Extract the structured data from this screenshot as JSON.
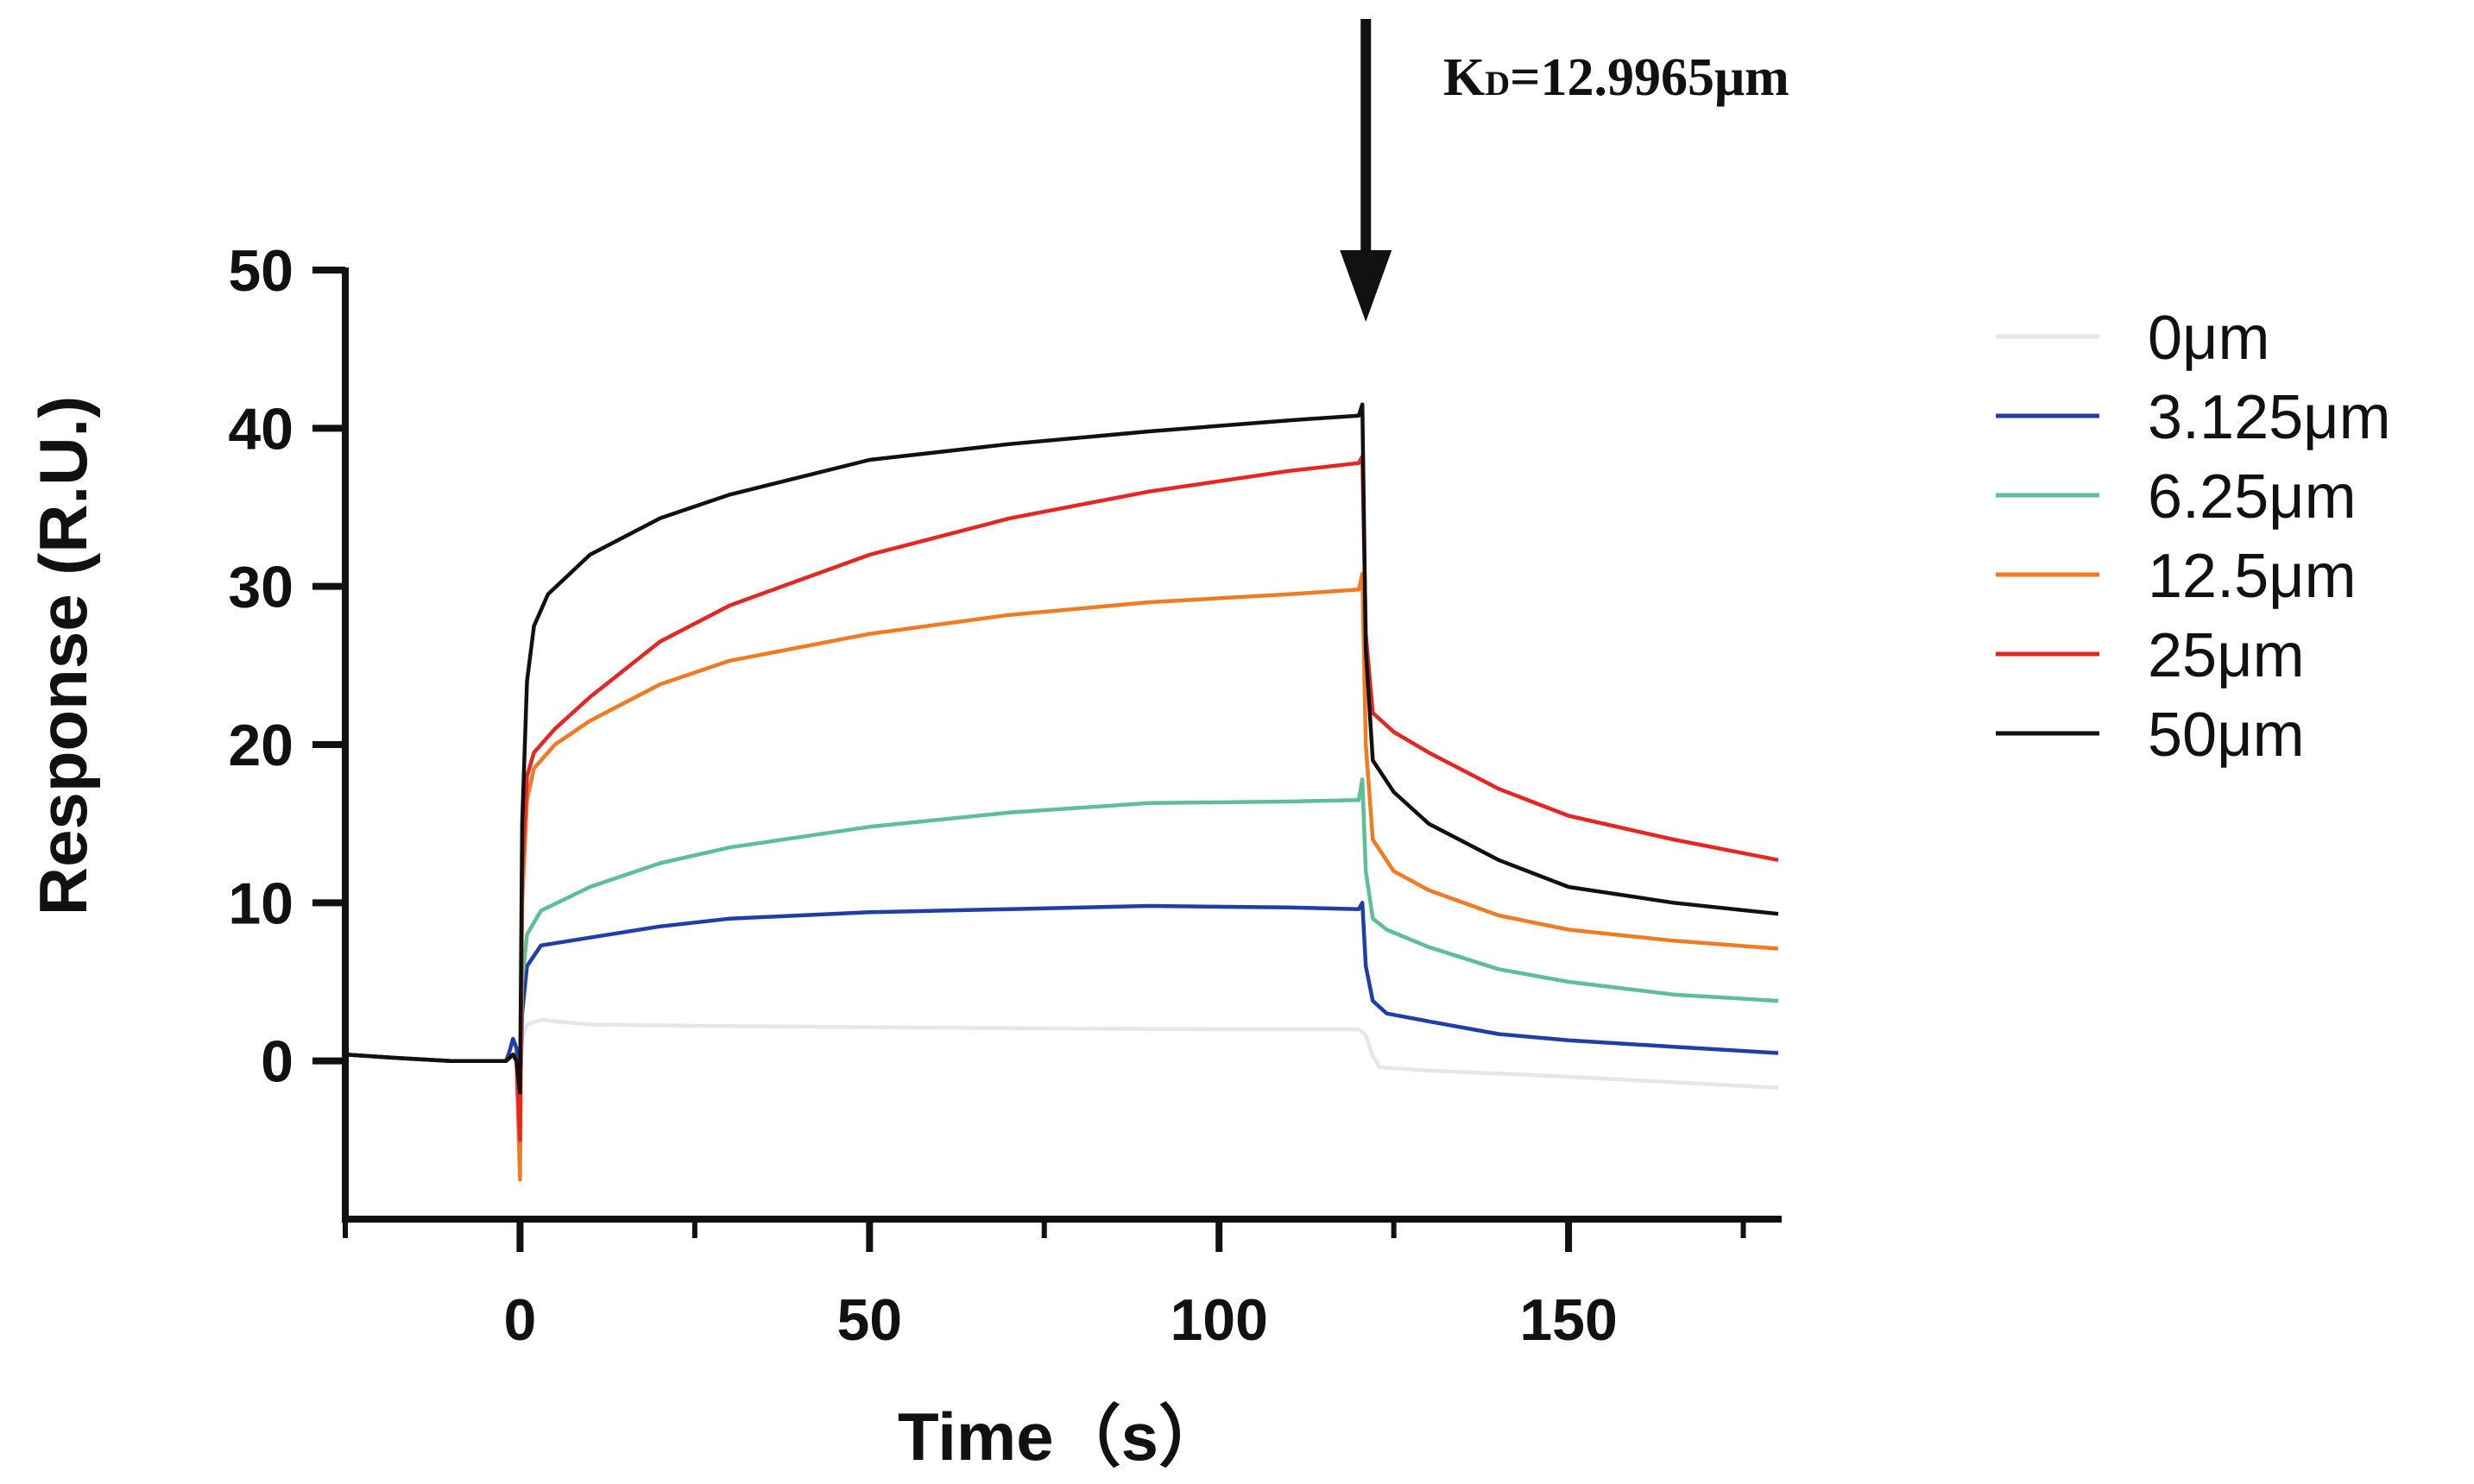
{
  "chart_data": {
    "type": "line",
    "title": "",
    "xlabel": "Time（s）",
    "ylabel": "Response (R.U.)",
    "xlim": [
      -25,
      180
    ],
    "ylim": [
      -10,
      50
    ],
    "x_ticks": [
      0,
      50,
      100,
      150
    ],
    "y_ticks": [
      0,
      10,
      20,
      30,
      40,
      50
    ],
    "x_tick_labels": [
      "0",
      "50",
      "100",
      "150"
    ],
    "y_tick_labels": [
      "0",
      "10",
      "20",
      "30",
      "40",
      "50"
    ],
    "legend_position": "right",
    "annotation": {
      "main": "K",
      "sub": "D",
      "rest": "=12.9965μm",
      "arrow_x": 121
    },
    "series": [
      {
        "name": "0μm",
        "color": "#e6e6e6",
        "points": [
          [
            -25,
            0.4
          ],
          [
            -18,
            0.2
          ],
          [
            -10,
            0.0
          ],
          [
            -2,
            0.0
          ],
          [
            -1,
            0.4
          ],
          [
            -0.5,
            -0.3
          ],
          [
            0,
            -1.0
          ],
          [
            0.3,
            1.5
          ],
          [
            1,
            2.3
          ],
          [
            3,
            2.6
          ],
          [
            10,
            2.3
          ],
          [
            30,
            2.2
          ],
          [
            60,
            2.1
          ],
          [
            100,
            2.0
          ],
          [
            120,
            2.0
          ],
          [
            121,
            1.6
          ],
          [
            122,
            0.3
          ],
          [
            123,
            -0.4
          ],
          [
            130,
            -0.6
          ],
          [
            150,
            -1.0
          ],
          [
            180,
            -1.7
          ]
        ]
      },
      {
        "name": "3.125μm",
        "color": "#1f3fa6",
        "points": [
          [
            -25,
            0.4
          ],
          [
            -18,
            0.2
          ],
          [
            -10,
            0.0
          ],
          [
            -2,
            0.0
          ],
          [
            -1.5,
            0.6
          ],
          [
            -1,
            1.4
          ],
          [
            -0.5,
            0.8
          ],
          [
            0,
            -2.5
          ],
          [
            0.3,
            3.0
          ],
          [
            1,
            6.0
          ],
          [
            3,
            7.3
          ],
          [
            10,
            7.8
          ],
          [
            20,
            8.5
          ],
          [
            30,
            9.0
          ],
          [
            50,
            9.4
          ],
          [
            70,
            9.6
          ],
          [
            90,
            9.8
          ],
          [
            110,
            9.7
          ],
          [
            120,
            9.6
          ],
          [
            120.5,
            10.0
          ],
          [
            121,
            6.0
          ],
          [
            122,
            3.8
          ],
          [
            124,
            3.0
          ],
          [
            130,
            2.5
          ],
          [
            140,
            1.7
          ],
          [
            150,
            1.3
          ],
          [
            165,
            0.9
          ],
          [
            180,
            0.5
          ]
        ]
      },
      {
        "name": "6.25μm",
        "color": "#5dbf98",
        "points": [
          [
            -25,
            0.4
          ],
          [
            -18,
            0.2
          ],
          [
            -10,
            0.0
          ],
          [
            -2,
            0.0
          ],
          [
            -1,
            0.4
          ],
          [
            -0.5,
            0.0
          ],
          [
            0,
            -3.0
          ],
          [
            0.3,
            5.0
          ],
          [
            1,
            8.0
          ],
          [
            3,
            9.5
          ],
          [
            10,
            11.0
          ],
          [
            20,
            12.5
          ],
          [
            30,
            13.5
          ],
          [
            50,
            14.8
          ],
          [
            70,
            15.7
          ],
          [
            90,
            16.3
          ],
          [
            110,
            16.4
          ],
          [
            120,
            16.5
          ],
          [
            120.5,
            17.8
          ],
          [
            121,
            12.0
          ],
          [
            122,
            9.0
          ],
          [
            124,
            8.3
          ],
          [
            130,
            7.2
          ],
          [
            140,
            5.8
          ],
          [
            150,
            5.0
          ],
          [
            165,
            4.2
          ],
          [
            180,
            3.8
          ]
        ]
      },
      {
        "name": "12.5μm",
        "color": "#f07b24",
        "points": [
          [
            -25,
            0.4
          ],
          [
            -18,
            0.2
          ],
          [
            -10,
            0.0
          ],
          [
            -2,
            0.0
          ],
          [
            -1,
            0.4
          ],
          [
            -0.5,
            0.0
          ],
          [
            0,
            -7.5
          ],
          [
            0.3,
            10.0
          ],
          [
            1,
            16.5
          ],
          [
            2,
            18.5
          ],
          [
            5,
            20.0
          ],
          [
            10,
            21.5
          ],
          [
            20,
            23.8
          ],
          [
            30,
            25.3
          ],
          [
            50,
            27.0
          ],
          [
            70,
            28.2
          ],
          [
            90,
            29.0
          ],
          [
            110,
            29.5
          ],
          [
            120,
            29.8
          ],
          [
            120.5,
            30.8
          ],
          [
            121,
            20.0
          ],
          [
            122,
            14.0
          ],
          [
            125,
            12.0
          ],
          [
            130,
            10.8
          ],
          [
            140,
            9.2
          ],
          [
            150,
            8.3
          ],
          [
            165,
            7.6
          ],
          [
            180,
            7.1
          ]
        ]
      },
      {
        "name": "25μm",
        "color": "#e52622",
        "points": [
          [
            -25,
            0.4
          ],
          [
            -18,
            0.2
          ],
          [
            -10,
            0.0
          ],
          [
            -2,
            0.0
          ],
          [
            -1,
            0.4
          ],
          [
            -0.5,
            0.0
          ],
          [
            0,
            -5.0
          ],
          [
            0.3,
            12.0
          ],
          [
            1,
            18.0
          ],
          [
            2,
            19.5
          ],
          [
            5,
            21.0
          ],
          [
            10,
            23.0
          ],
          [
            20,
            26.5
          ],
          [
            30,
            28.8
          ],
          [
            50,
            32.0
          ],
          [
            70,
            34.3
          ],
          [
            90,
            36.0
          ],
          [
            110,
            37.3
          ],
          [
            120,
            37.8
          ],
          [
            120.5,
            38.2
          ],
          [
            121,
            27.0
          ],
          [
            122,
            22.0
          ],
          [
            125,
            20.8
          ],
          [
            130,
            19.5
          ],
          [
            140,
            17.2
          ],
          [
            150,
            15.5
          ],
          [
            165,
            14.0
          ],
          [
            180,
            12.7
          ]
        ]
      },
      {
        "name": "50μm",
        "color": "#111111",
        "points": [
          [
            -25,
            0.4
          ],
          [
            -18,
            0.2
          ],
          [
            -10,
            0.0
          ],
          [
            -2,
            0.0
          ],
          [
            -1,
            0.4
          ],
          [
            -0.5,
            0.0
          ],
          [
            0,
            -2.0
          ],
          [
            0.3,
            15.0
          ],
          [
            1,
            24.0
          ],
          [
            2,
            27.5
          ],
          [
            4,
            29.5
          ],
          [
            10,
            32.0
          ],
          [
            20,
            34.3
          ],
          [
            30,
            35.8
          ],
          [
            50,
            38.0
          ],
          [
            70,
            39.0
          ],
          [
            90,
            39.8
          ],
          [
            110,
            40.5
          ],
          [
            120,
            40.8
          ],
          [
            120.5,
            41.5
          ],
          [
            121,
            26.0
          ],
          [
            122,
            19.0
          ],
          [
            125,
            17.0
          ],
          [
            130,
            15.0
          ],
          [
            140,
            12.7
          ],
          [
            150,
            11.0
          ],
          [
            165,
            10.0
          ],
          [
            180,
            9.3
          ]
        ]
      }
    ]
  }
}
